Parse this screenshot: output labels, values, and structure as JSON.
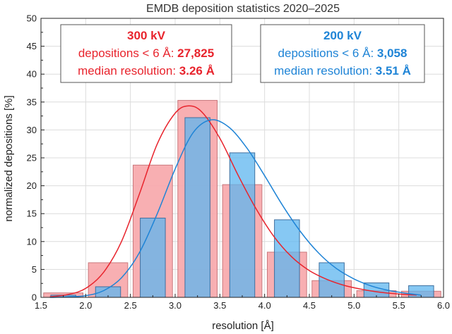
{
  "chart_data": {
    "type": "bar",
    "title": "EMDB deposition statistics 2020–2025",
    "xlabel": "resolution [Å]",
    "ylabel": "normalized depositions [%]",
    "xlim": [
      1.5,
      6.0
    ],
    "ylim": [
      0,
      50
    ],
    "x_ticks": [
      "1.5",
      "2.0",
      "2.5",
      "3.0",
      "3.5",
      "4.0",
      "4.5",
      "5.0",
      "5.5",
      "6.0"
    ],
    "y_ticks": [
      "0",
      "5",
      "10",
      "15",
      "20",
      "25",
      "30",
      "35",
      "40",
      "45",
      "50"
    ],
    "grid": true,
    "series": [
      {
        "name": "300 kV",
        "color": "#e8242d",
        "bar_fill": "#f7a6aa",
        "bins": [
          [
            1.5,
            2.0
          ],
          [
            2.0,
            2.5
          ],
          [
            2.5,
            3.0
          ],
          [
            3.0,
            3.5
          ],
          [
            3.5,
            4.0
          ],
          [
            4.0,
            4.5
          ],
          [
            4.5,
            5.0
          ],
          [
            5.0,
            5.5
          ],
          [
            5.5,
            6.0
          ]
        ],
        "values": [
          0.8,
          6.2,
          23.7,
          35.3,
          20.2,
          8.1,
          3.0,
          1.2,
          1.1
        ],
        "fit_curve": {
          "x": [
            1.6,
            1.8,
            2.0,
            2.2,
            2.4,
            2.6,
            2.8,
            3.0,
            3.15,
            3.3,
            3.5,
            3.7,
            3.9,
            4.1,
            4.3,
            4.5,
            4.7,
            4.9,
            5.1,
            5.3,
            5.5,
            5.7
          ],
          "y": [
            0.1,
            0.5,
            1.6,
            4.5,
            10.0,
            18.5,
            27.5,
            33.0,
            34.3,
            33.2,
            28.5,
            22.0,
            16.0,
            11.0,
            7.3,
            4.8,
            3.2,
            2.1,
            1.4,
            0.9,
            0.6,
            0.4
          ]
        }
      },
      {
        "name": "200 kV",
        "color": "#1f84d6",
        "bar_fill": "#5db6ef",
        "bins": [
          [
            1.5,
            2.0
          ],
          [
            2.0,
            2.5
          ],
          [
            2.5,
            3.0
          ],
          [
            3.0,
            3.5
          ],
          [
            3.5,
            4.0
          ],
          [
            4.0,
            4.5
          ],
          [
            4.5,
            5.0
          ],
          [
            5.0,
            5.5
          ],
          [
            5.5,
            6.0
          ]
        ],
        "values": [
          0.4,
          1.9,
          14.2,
          32.2,
          25.9,
          13.9,
          6.2,
          2.6,
          2.1
        ],
        "fit_curve": {
          "x": [
            1.6,
            1.8,
            2.0,
            2.2,
            2.4,
            2.6,
            2.8,
            3.0,
            3.2,
            3.4,
            3.6,
            3.8,
            4.0,
            4.2,
            4.4,
            4.6,
            4.8,
            5.0,
            5.2,
            5.4,
            5.6,
            5.75
          ],
          "y": [
            0.0,
            0.1,
            0.3,
            1.2,
            3.5,
            8.0,
            15.0,
            23.0,
            29.5,
            31.8,
            30.5,
            26.8,
            21.8,
            16.5,
            11.8,
            8.0,
            5.2,
            3.3,
            2.0,
            1.2,
            0.7,
            0.4
          ]
        }
      }
    ],
    "annotations": [
      {
        "series": "300 kV",
        "color": "#e8242d",
        "lines": [
          {
            "parts": [
              {
                "text": "300 kV",
                "bold": true
              }
            ]
          },
          {
            "parts": [
              {
                "text": "depositions < 6 Å: ",
                "bold": false
              },
              {
                "text": "27,825",
                "bold": true
              }
            ]
          },
          {
            "parts": [
              {
                "text": "median resolution: ",
                "bold": false
              },
              {
                "text": "3.26 Å",
                "bold": true
              }
            ]
          }
        ]
      },
      {
        "series": "200 kV",
        "color": "#1f84d6",
        "lines": [
          {
            "parts": [
              {
                "text": "200 kV",
                "bold": true
              }
            ]
          },
          {
            "parts": [
              {
                "text": "depositions < 6 Å: ",
                "bold": false
              },
              {
                "text": "3,058",
                "bold": true
              }
            ]
          },
          {
            "parts": [
              {
                "text": "median resolution: ",
                "bold": false
              },
              {
                "text": "3.51 Å",
                "bold": true
              }
            ]
          }
        ]
      }
    ]
  }
}
